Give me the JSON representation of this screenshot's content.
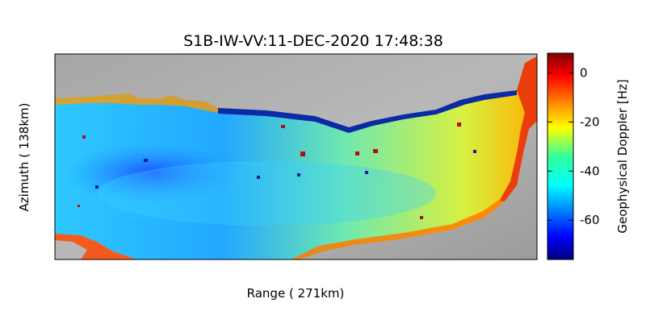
{
  "chart_data": {
    "type": "heatmap",
    "title": "S1B-IW-VV:11-DEC-2020 17:48:38",
    "xlabel": "Range ( 271km)",
    "ylabel": "Azimuth ( 138km)",
    "colorbar": {
      "label": "Geophysical Doppler [Hz]",
      "range": [
        -76,
        8
      ],
      "ticks": [
        0,
        -20,
        -40,
        -60
      ],
      "colormap": "jet"
    },
    "background": "grayscale SAR backscatter (land/no-data)"
  }
}
